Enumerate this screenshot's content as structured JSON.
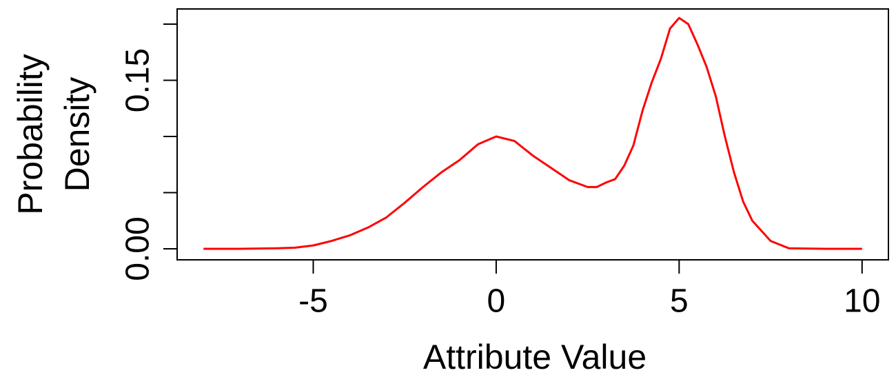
{
  "chart_data": {
    "type": "line",
    "xlabel": "Attribute Value",
    "ylabel": [
      "Probability",
      "Density"
    ],
    "x": [
      -8,
      -7,
      -6,
      -5.5,
      -5,
      -4.5,
      -4,
      -3.5,
      -3,
      -2.5,
      -2,
      -1.5,
      -1,
      -0.5,
      0,
      0.5,
      1,
      1.5,
      2,
      2.5,
      2.75,
      3,
      3.25,
      3.5,
      3.75,
      4,
      4.25,
      4.5,
      4.75,
      5,
      5.25,
      5.5,
      5.75,
      6,
      6.25,
      6.5,
      6.75,
      7,
      7.5,
      8,
      9,
      10
    ],
    "series": [
      {
        "color": "#ff0000",
        "values": [
          0,
          0,
          0.0005,
          0.001,
          0.003,
          0.007,
          0.012,
          0.019,
          0.028,
          0.041,
          0.055,
          0.068,
          0.079,
          0.093,
          0.1,
          0.096,
          0.083,
          0.072,
          0.061,
          0.055,
          0.055,
          0.059,
          0.062,
          0.074,
          0.092,
          0.123,
          0.148,
          0.169,
          0.196,
          0.2055,
          0.2,
          0.182,
          0.162,
          0.136,
          0.1,
          0.068,
          0.042,
          0.025,
          0.007,
          0.0005,
          0,
          0
        ]
      }
    ],
    "xlim": [
      -8.72,
      10.72
    ],
    "ylim": [
      -0.0098,
      0.2135
    ],
    "xticks": [
      -5,
      0,
      5,
      10
    ],
    "yticks": [
      {
        "value": 0,
        "label": "0.00"
      },
      {
        "value": 0.05,
        "label": null
      },
      {
        "value": 0.1,
        "label": null
      },
      {
        "value": 0.15,
        "label": "0.15"
      },
      {
        "value": 0.2,
        "label": null
      }
    ]
  }
}
